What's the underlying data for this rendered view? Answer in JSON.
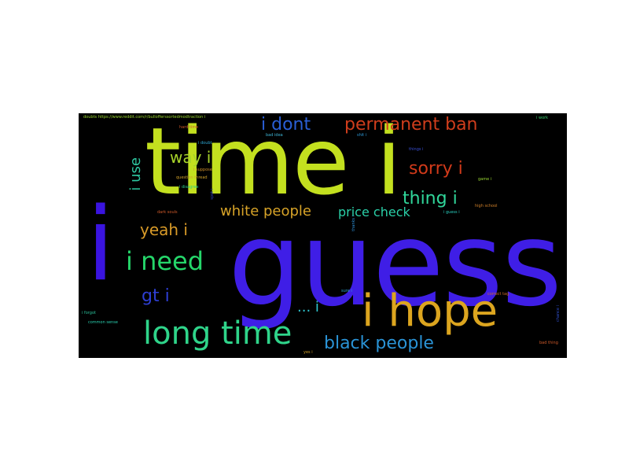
{
  "words": [
    {
      "text": "time i",
      "color": "#c3e01f"
    },
    {
      "text": "i",
      "color": "#3a14e0"
    },
    {
      "text": "guess",
      "color": "#3f1ee6"
    },
    {
      "text": "i hope",
      "color": "#dca51f"
    },
    {
      "text": "long time",
      "color": "#2fd48a"
    },
    {
      "text": "i need",
      "color": "#25d66a"
    },
    {
      "text": "i dont",
      "color": "#2a5fd6"
    },
    {
      "text": "permanent ban",
      "color": "#cf3d1c"
    },
    {
      "text": "sorry i",
      "color": "#d23a1a"
    },
    {
      "text": "thing i",
      "color": "#30d69a"
    },
    {
      "text": "way i",
      "color": "#a7d32a"
    },
    {
      "text": "white people",
      "color": "#d7a328"
    },
    {
      "text": "price check",
      "color": "#2ad0a8"
    },
    {
      "text": "black people",
      "color": "#2a93d6"
    },
    {
      "text": "yeah i",
      "color": "#d89a28"
    },
    {
      "text": "gt i",
      "color": "#2e3fd4"
    },
    {
      "text": "... i",
      "color": "#2fc7d0"
    },
    {
      "text": "i use",
      "color": "#2ec7a0"
    },
    {
      "text": "doubts https://www.reddit.com/r/bullofferssortedmodtraction i",
      "color": "#9bd832"
    },
    {
      "text": "hard time",
      "color": "#d05a2a"
    },
    {
      "text": "bad idea",
      "color": "#3fb7d8"
    },
    {
      "text": "shit i",
      "color": "#2e9ad8"
    },
    {
      "text": "i doubt",
      "color": "#2ea8d6"
    },
    {
      "text": "i suppose",
      "color": "#d0902a"
    },
    {
      "text": "question thread",
      "color": "#d0a02a"
    },
    {
      "text": "i disagree",
      "color": "#2ad08a"
    },
    {
      "text": "dark souls",
      "color": "#d05a2a"
    },
    {
      "text": "things i",
      "color": "#3a50d8"
    },
    {
      "text": "game i",
      "color": "#9ad832"
    },
    {
      "text": "high school",
      "color": "#d0802a"
    },
    {
      "text": "i guess i",
      "color": "#2ad0c0"
    },
    {
      "text": "i work",
      "color": "#3ad070"
    },
    {
      "text": "i forgot",
      "color": "#2ac09a"
    },
    {
      "text": "common sense",
      "color": "#2ad0b0"
    },
    {
      "text": "sure i",
      "color": "#2ea8d6"
    },
    {
      "text": "correct tag",
      "color": "#d06a2a"
    },
    {
      "text": "yes i",
      "color": "#d0a02a"
    },
    {
      "text": "bad thing",
      "color": "#d05a2a"
    },
    {
      "text": "thanks i",
      "color": "#2e90d8"
    },
    {
      "text": "chance i",
      "color": "#3050d0"
    },
    {
      "text": "spot i",
      "color": "#3040c0"
    }
  ]
}
